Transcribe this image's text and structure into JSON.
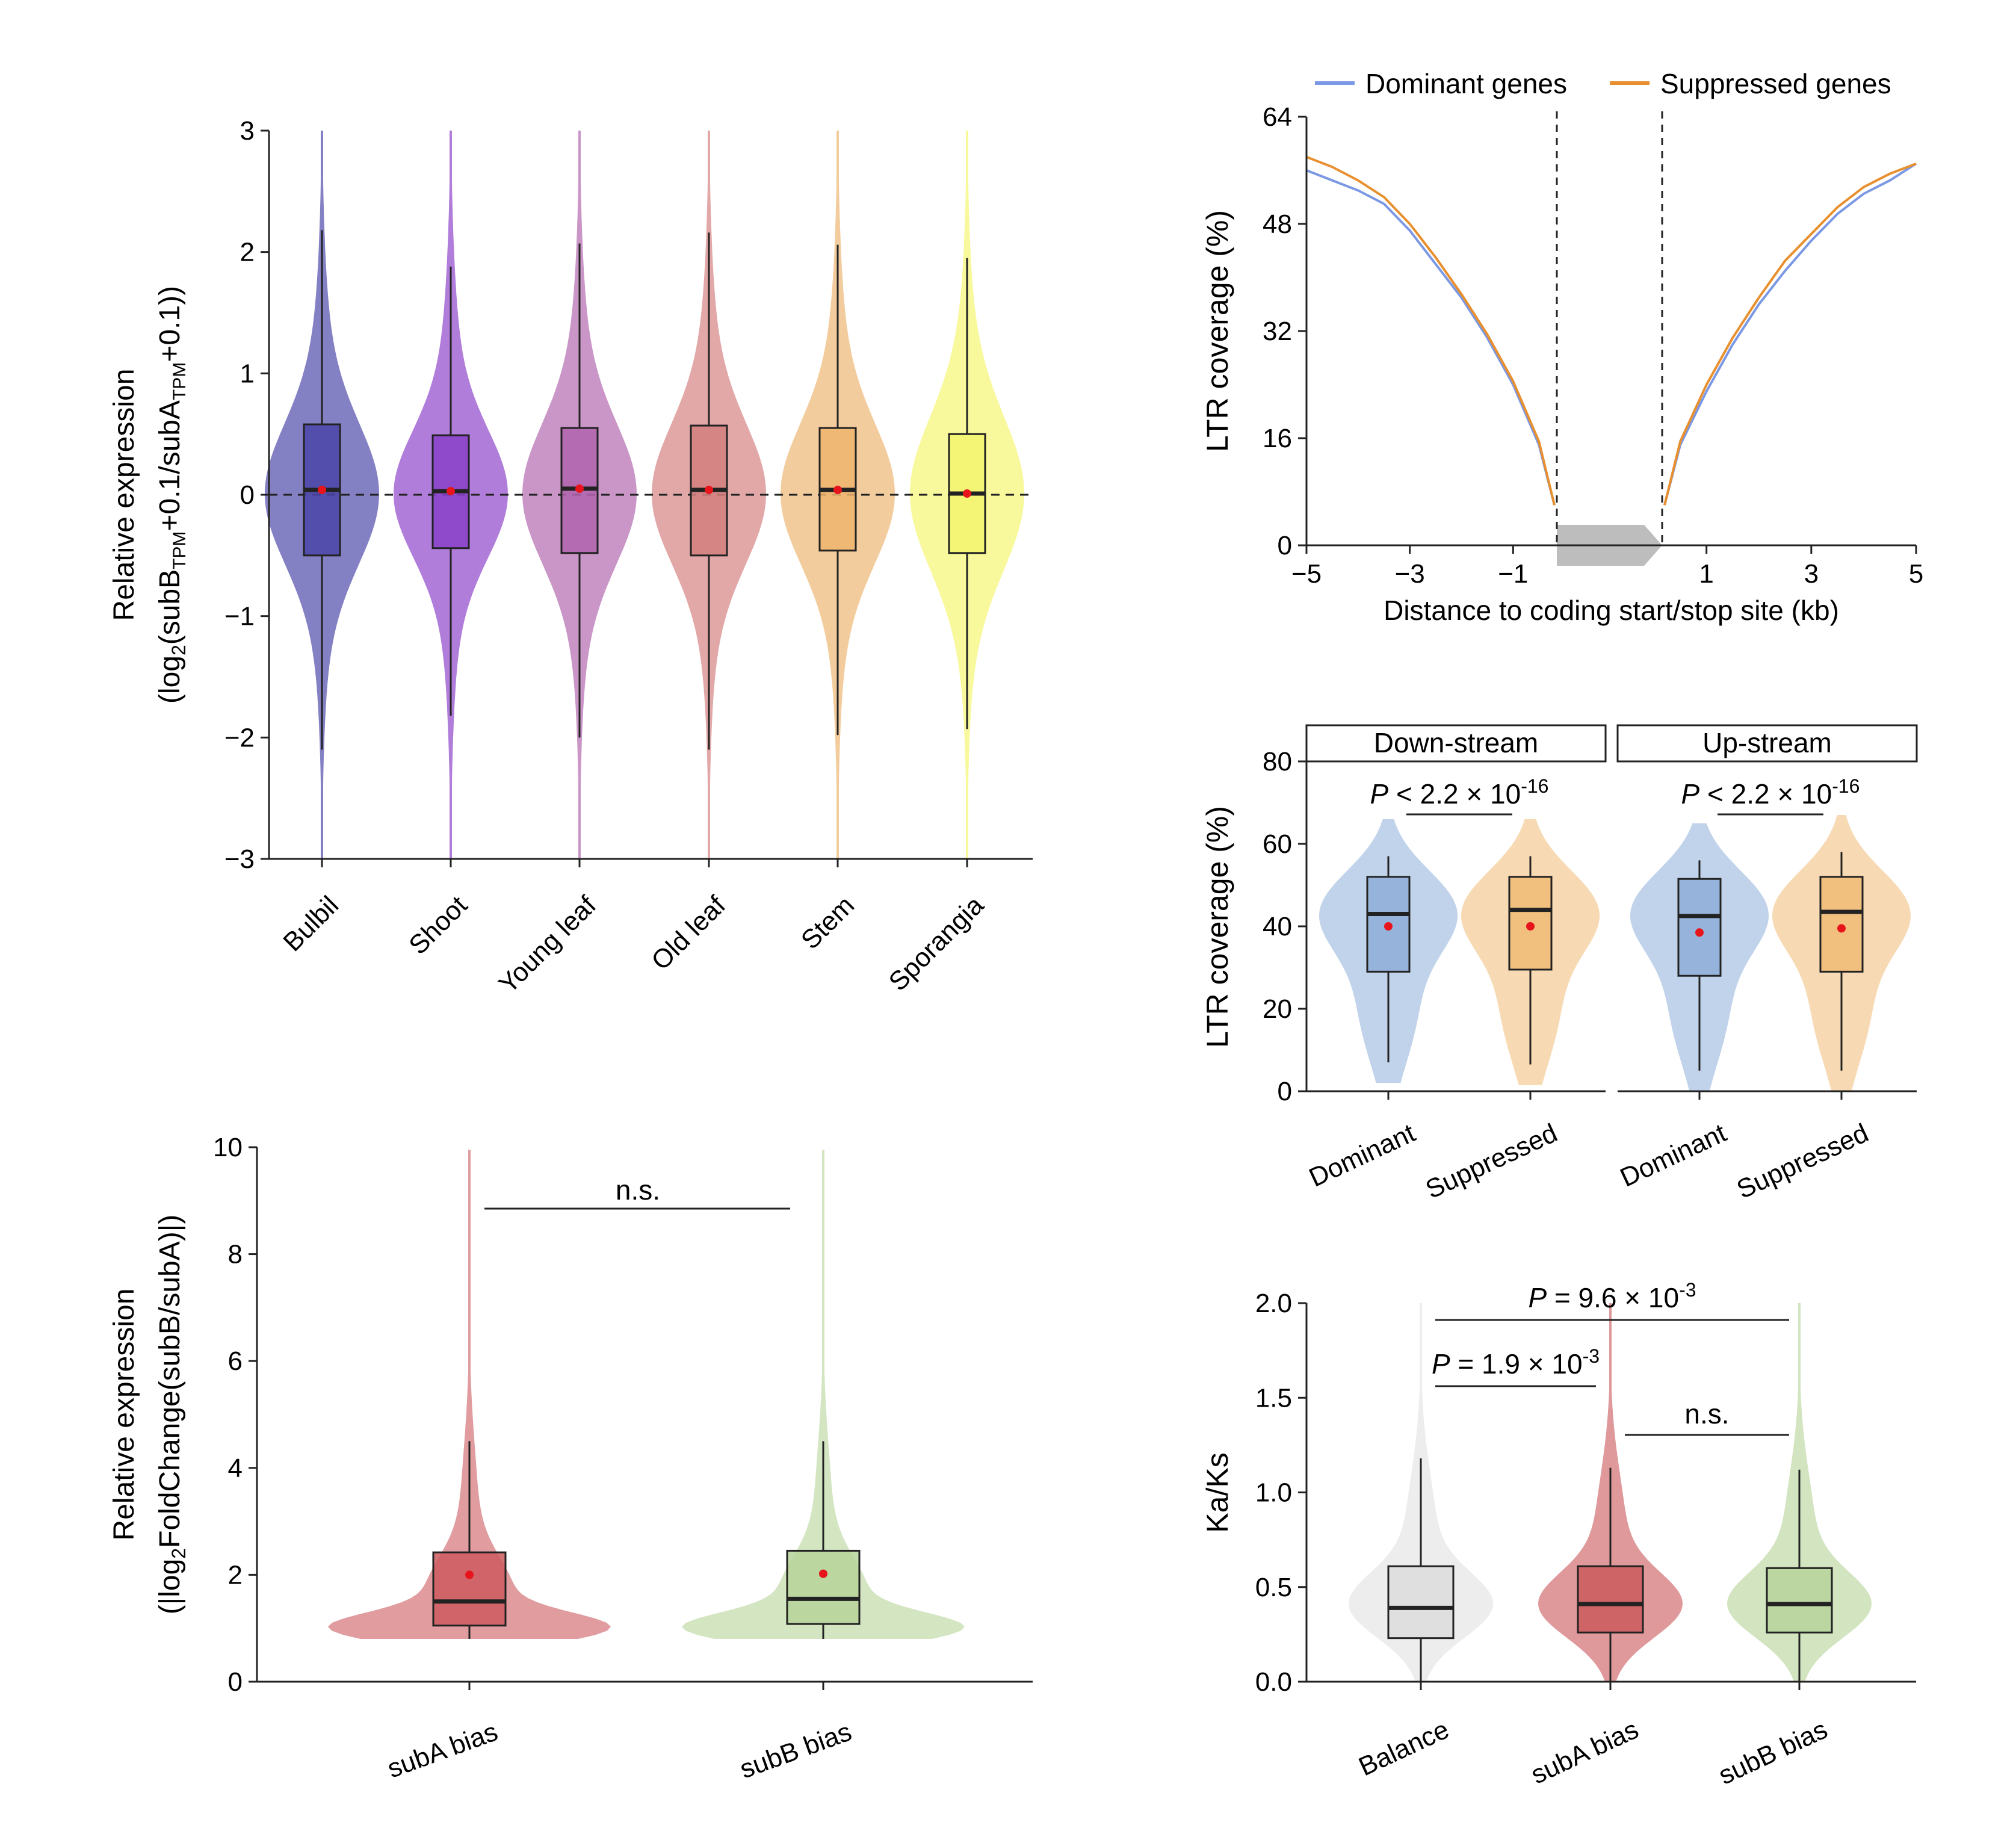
{
  "colors": {
    "bulbil": "#4a44a8",
    "shoot": "#8a3fc8",
    "young_leaf": "#b064ad",
    "old_leaf": "#d47f7f",
    "stem": "#eeb46e",
    "sporangia": "#f4f46e",
    "dominant_line": "#7b98e4",
    "suppressed_line": "#e8902f",
    "dominant_violin": "#8eaed8",
    "suppressed_violin": "#f0bb75",
    "balance": "#dcdcdc",
    "subA": "#cc5a5e",
    "subB": "#b7d49a",
    "mean_dot": "#e8141b",
    "gene_arrow": "#bdbdbd"
  },
  "chart_data": [
    {
      "id": "a",
      "type": "violin",
      "ylabel_line1": "Relative expression",
      "ylabel_line2": "(log2(subBTPM+0.1/subATPM+0.1))",
      "ylim": [
        -3,
        3
      ],
      "yticks": [
        -3,
        -2,
        -1,
        0,
        1,
        2,
        3
      ],
      "reference_line": 0,
      "categories": [
        "Bulbil",
        "Shoot",
        "Young leaf",
        "Old leaf",
        "Stem",
        "Sporangia"
      ],
      "boxes": [
        {
          "name": "Bulbil",
          "q1": -0.5,
          "median": 0.04,
          "q3": 0.58,
          "whisker_low": -2.1,
          "whisker_high": 2.18,
          "mean": 0.04,
          "color": "#4a44a8"
        },
        {
          "name": "Shoot",
          "q1": -0.44,
          "median": 0.03,
          "q3": 0.49,
          "whisker_low": -1.82,
          "whisker_high": 1.88,
          "mean": 0.03,
          "color": "#8a3fc8"
        },
        {
          "name": "Young leaf",
          "q1": -0.48,
          "median": 0.05,
          "q3": 0.55,
          "whisker_low": -2.0,
          "whisker_high": 2.07,
          "mean": 0.05,
          "color": "#b064ad"
        },
        {
          "name": "Old leaf",
          "q1": -0.5,
          "median": 0.04,
          "q3": 0.57,
          "whisker_low": -2.1,
          "whisker_high": 2.16,
          "mean": 0.04,
          "color": "#d47f7f"
        },
        {
          "name": "Stem",
          "q1": -0.46,
          "median": 0.04,
          "q3": 0.55,
          "whisker_low": -1.98,
          "whisker_high": 2.06,
          "mean": 0.04,
          "color": "#eeb46e"
        },
        {
          "name": "Sporangia",
          "q1": -0.48,
          "median": 0.01,
          "q3": 0.5,
          "whisker_low": -1.93,
          "whisker_high": 1.95,
          "mean": 0.01,
          "color": "#f4f46e"
        }
      ]
    },
    {
      "id": "b",
      "type": "line",
      "ylabel": "LTR coverage (%)",
      "xlabel": "Distance to coding start/stop site (kb)",
      "ylim": [
        0,
        64
      ],
      "yticks": [
        0,
        16,
        32,
        48,
        64
      ],
      "xlim": [
        -5,
        5
      ],
      "xticks": [
        -5,
        -3,
        -1,
        1,
        3,
        5
      ],
      "series": [
        {
          "name": "Dominant genes",
          "color": "#7b98e4",
          "upstream": {
            "x": [
              -5,
              -4.5,
              -4,
              -3.5,
              -3,
              -2.5,
              -2,
              -1.5,
              -1,
              -0.5,
              -0.2
            ],
            "y": [
              56,
              54.5,
              53,
              51,
              47,
              42,
              37,
              31,
              24,
              15,
              6
            ]
          },
          "downstream": {
            "x": [
              0.2,
              0.5,
              1,
              1.5,
              2,
              2.5,
              3,
              3.5,
              4,
              4.5,
              5
            ],
            "y": [
              6,
              15,
              23,
              30,
              36,
              41,
              45.5,
              49.5,
              52.5,
              54.5,
              57
            ]
          }
        },
        {
          "name": "Suppressed genes",
          "color": "#e8902f",
          "upstream": {
            "x": [
              -5,
              -4.5,
              -4,
              -3.5,
              -3,
              -2.5,
              -2,
              -1.5,
              -1,
              -0.5,
              -0.2
            ],
            "y": [
              58,
              56.5,
              54.5,
              52,
              48,
              43,
              37.5,
              31.5,
              24.5,
              15.5,
              6
            ]
          },
          "downstream": {
            "x": [
              0.2,
              0.5,
              1,
              1.5,
              2,
              2.5,
              3,
              3.5,
              4,
              4.5,
              5
            ],
            "y": [
              6,
              15.5,
              24,
              31,
              37,
              42.5,
              46.5,
              50.5,
              53.5,
              55.5,
              57
            ]
          }
        }
      ]
    },
    {
      "id": "c",
      "type": "violin",
      "ylabel": "LTR coverage (%)",
      "ylim": [
        0,
        80
      ],
      "yticks": [
        0,
        20,
        40,
        60,
        80
      ],
      "facets": [
        {
          "title": "Down-stream",
          "p_prefix": "P",
          "p_text": " < 2.2 × 10",
          "p_exp": "-16",
          "boxes": [
            {
              "name": "Dominant",
              "q1": 29,
              "median": 43,
              "q3": 52,
              "whisker_low": 7,
              "whisker_high": 57,
              "mean": 40,
              "color": "#8eaed8"
            },
            {
              "name": "Suppressed",
              "q1": 29.5,
              "median": 44,
              "q3": 52,
              "whisker_low": 6.5,
              "whisker_high": 57,
              "mean": 40,
              "color": "#f0bb75"
            }
          ]
        },
        {
          "title": "Up-stream",
          "p_prefix": "P",
          "p_text": " < 2.2 × 10",
          "p_exp": "-16",
          "boxes": [
            {
              "name": "Dominant",
              "q1": 28,
              "median": 42.5,
              "q3": 51.5,
              "whisker_low": 5,
              "whisker_high": 56,
              "mean": 38.5,
              "color": "#8eaed8"
            },
            {
              "name": "Suppressed",
              "q1": 29,
              "median": 43.5,
              "q3": 52,
              "whisker_low": 5,
              "whisker_high": 58,
              "mean": 39.5,
              "color": "#f0bb75"
            }
          ]
        }
      ]
    },
    {
      "id": "d",
      "type": "violin",
      "ylabel_line1": "Relative expression",
      "ylabel_line2": "(|log2FoldChange(subB/subA)|)",
      "ylim": [
        0,
        10
      ],
      "yticks": [
        0,
        2,
        4,
        6,
        8,
        10
      ],
      "annotation": "n.s.",
      "boxes": [
        {
          "name": "subA bias",
          "q1": 1.05,
          "median": 1.5,
          "q3": 2.42,
          "whisker_low": 0.8,
          "whisker_high": 4.5,
          "mean": 2.0,
          "color": "#cc5a5e"
        },
        {
          "name": "subB bias",
          "q1": 1.08,
          "median": 1.55,
          "q3": 2.45,
          "whisker_low": 0.8,
          "whisker_high": 4.5,
          "mean": 2.02,
          "color": "#b7d49a"
        }
      ]
    },
    {
      "id": "e",
      "type": "violin",
      "ylabel": "Ka/Ks",
      "ylim": [
        0,
        2
      ],
      "yticks": [
        "0.0",
        "0.5",
        "1.0",
        "1.5",
        "2.0"
      ],
      "annotations": [
        {
          "prefix": "P",
          "text": " = 9.6 × 10",
          "exp": "-3",
          "from": "Balance",
          "to": "subB bias"
        },
        {
          "prefix": "P",
          "text": " = 1.9 × 10",
          "exp": "-3",
          "from": "Balance",
          "to": "subA bias"
        },
        {
          "prefix": "",
          "text": "n.s.",
          "exp": "",
          "from": "subA bias",
          "to": "subB bias"
        }
      ],
      "boxes": [
        {
          "name": "Balance",
          "q1": 0.23,
          "median": 0.39,
          "q3": 0.61,
          "whisker_low": 0.0,
          "whisker_high": 1.18,
          "color": "#dcdcdc"
        },
        {
          "name": "subA bias",
          "q1": 0.26,
          "median": 0.41,
          "q3": 0.61,
          "whisker_low": 0.0,
          "whisker_high": 1.13,
          "color": "#cc5a5e"
        },
        {
          "name": "subB bias",
          "q1": 0.26,
          "median": 0.41,
          "q3": 0.6,
          "whisker_low": 0.0,
          "whisker_high": 1.12,
          "color": "#b7d49a"
        }
      ]
    }
  ]
}
